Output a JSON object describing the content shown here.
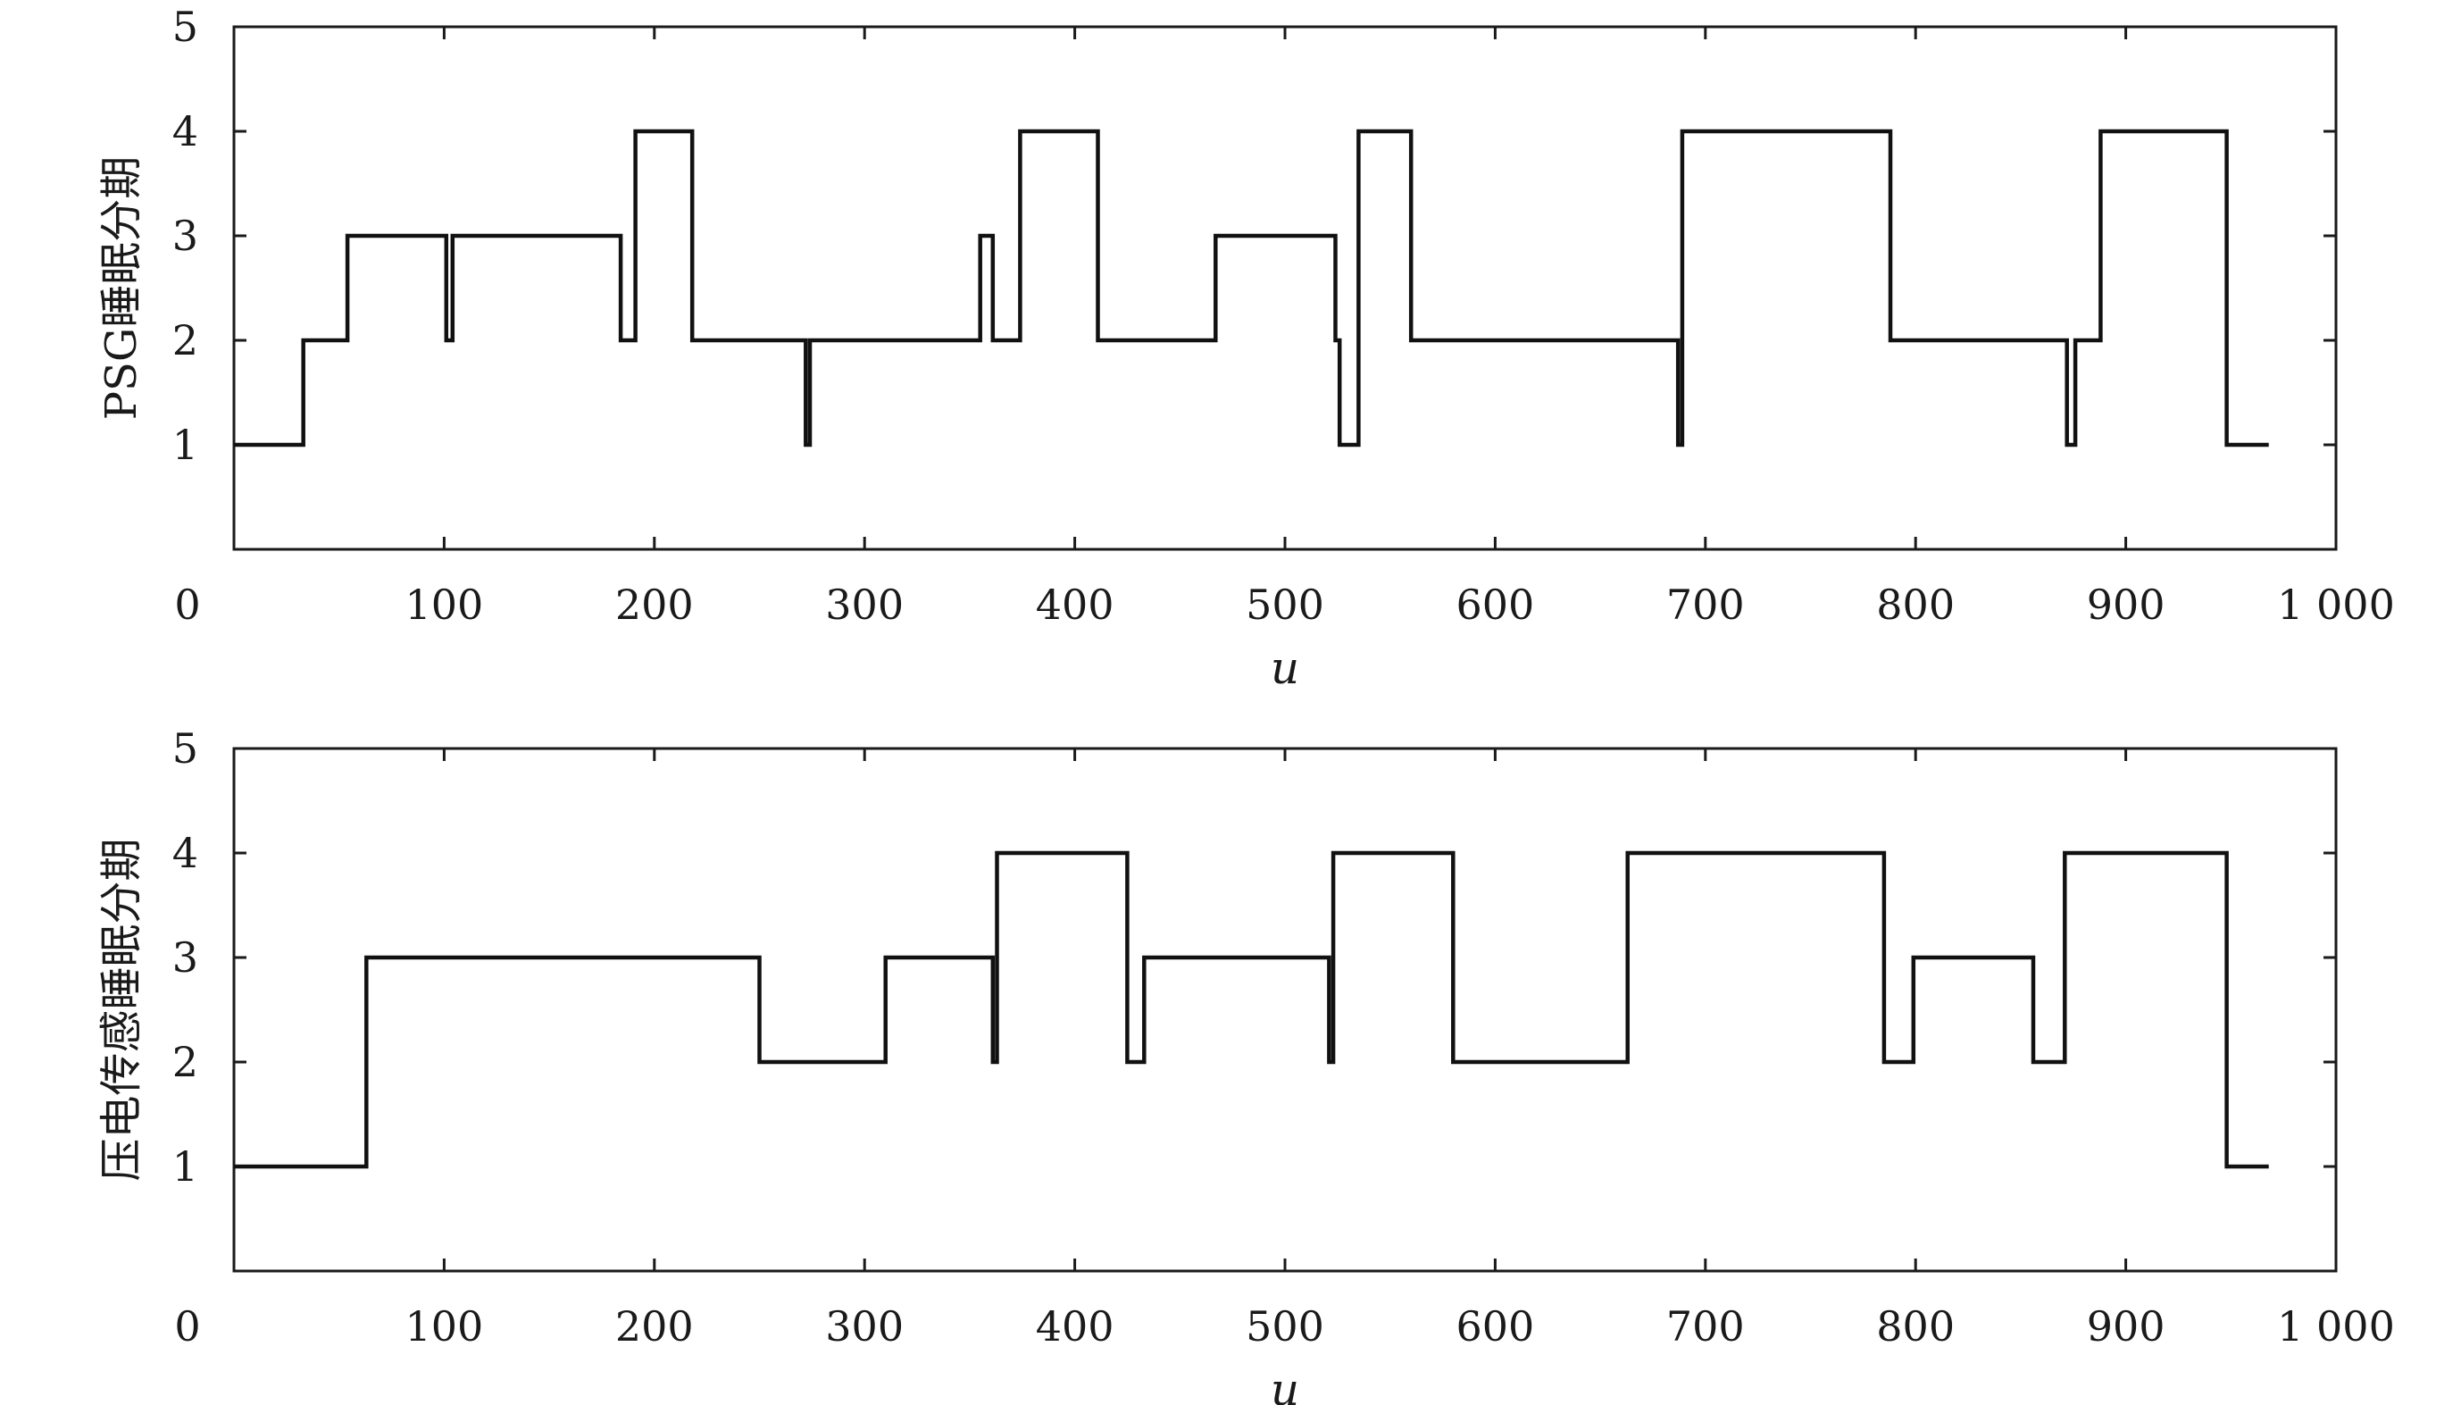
{
  "chart_data": [
    {
      "type": "line",
      "step": true,
      "ylabel": "PSG睡眠分期",
      "xlabel": "u",
      "xlim": [
        0,
        1000
      ],
      "ylim": [
        0,
        5
      ],
      "xticks": [
        0,
        100,
        200,
        300,
        400,
        500,
        600,
        700,
        800,
        900,
        1000
      ],
      "xtick_labels": [
        "0",
        "100",
        "200",
        "300",
        "400",
        "500",
        "600",
        "700",
        "800",
        "900",
        "1 000"
      ],
      "yticks": [
        1,
        2,
        3,
        4,
        5
      ],
      "ytick_labels": [
        "1",
        "2",
        "3",
        "4",
        "5"
      ],
      "grid": false,
      "color": "#111111",
      "series": [
        {
          "x": [
            0,
            33,
            33,
            54,
            54,
            101,
            101,
            104,
            104,
            184,
            184,
            191,
            191,
            218,
            218,
            272,
            272,
            274,
            274,
            355,
            355,
            361,
            361,
            374,
            374,
            411,
            411,
            467,
            467,
            524,
            524,
            526,
            526,
            535,
            535,
            560,
            560,
            687,
            687,
            689,
            689,
            788,
            788,
            872,
            872,
            876,
            876,
            888,
            888,
            948,
            948,
            968
          ],
          "y": [
            1,
            1,
            2,
            2,
            3,
            3,
            2,
            2,
            3,
            3,
            2,
            2,
            4,
            4,
            2,
            2,
            1,
            1,
            2,
            2,
            3,
            3,
            2,
            2,
            4,
            4,
            2,
            2,
            3,
            3,
            2,
            2,
            1,
            1,
            4,
            4,
            2,
            2,
            1,
            1,
            4,
            4,
            2,
            2,
            1,
            1,
            2,
            2,
            4,
            4,
            1,
            1
          ]
        }
      ]
    },
    {
      "type": "line",
      "step": true,
      "ylabel": "压电传感睡眠分期",
      "xlabel": "u",
      "xlim": [
        0,
        1000
      ],
      "ylim": [
        0,
        5
      ],
      "xticks": [
        0,
        100,
        200,
        300,
        400,
        500,
        600,
        700,
        800,
        900,
        1000
      ],
      "xtick_labels": [
        "0",
        "100",
        "200",
        "300",
        "400",
        "500",
        "600",
        "700",
        "800",
        "900",
        "1 000"
      ],
      "yticks": [
        1,
        2,
        3,
        4,
        5
      ],
      "ytick_labels": [
        "1",
        "2",
        "3",
        "4",
        "5"
      ],
      "grid": false,
      "color": "#111111",
      "series": [
        {
          "x": [
            0,
            63,
            63,
            250,
            250,
            310,
            310,
            361,
            361,
            363,
            363,
            425,
            425,
            433,
            433,
            521,
            521,
            523,
            523,
            580,
            580,
            663,
            663,
            785,
            785,
            799,
            799,
            856,
            856,
            871,
            871,
            948,
            948,
            968
          ],
          "y": [
            1,
            1,
            3,
            3,
            2,
            2,
            3,
            3,
            2,
            2,
            4,
            4,
            2,
            2,
            3,
            3,
            2,
            2,
            4,
            4,
            2,
            2,
            4,
            4,
            2,
            2,
            3,
            3,
            2,
            2,
            4,
            4,
            1,
            1
          ]
        }
      ]
    }
  ]
}
